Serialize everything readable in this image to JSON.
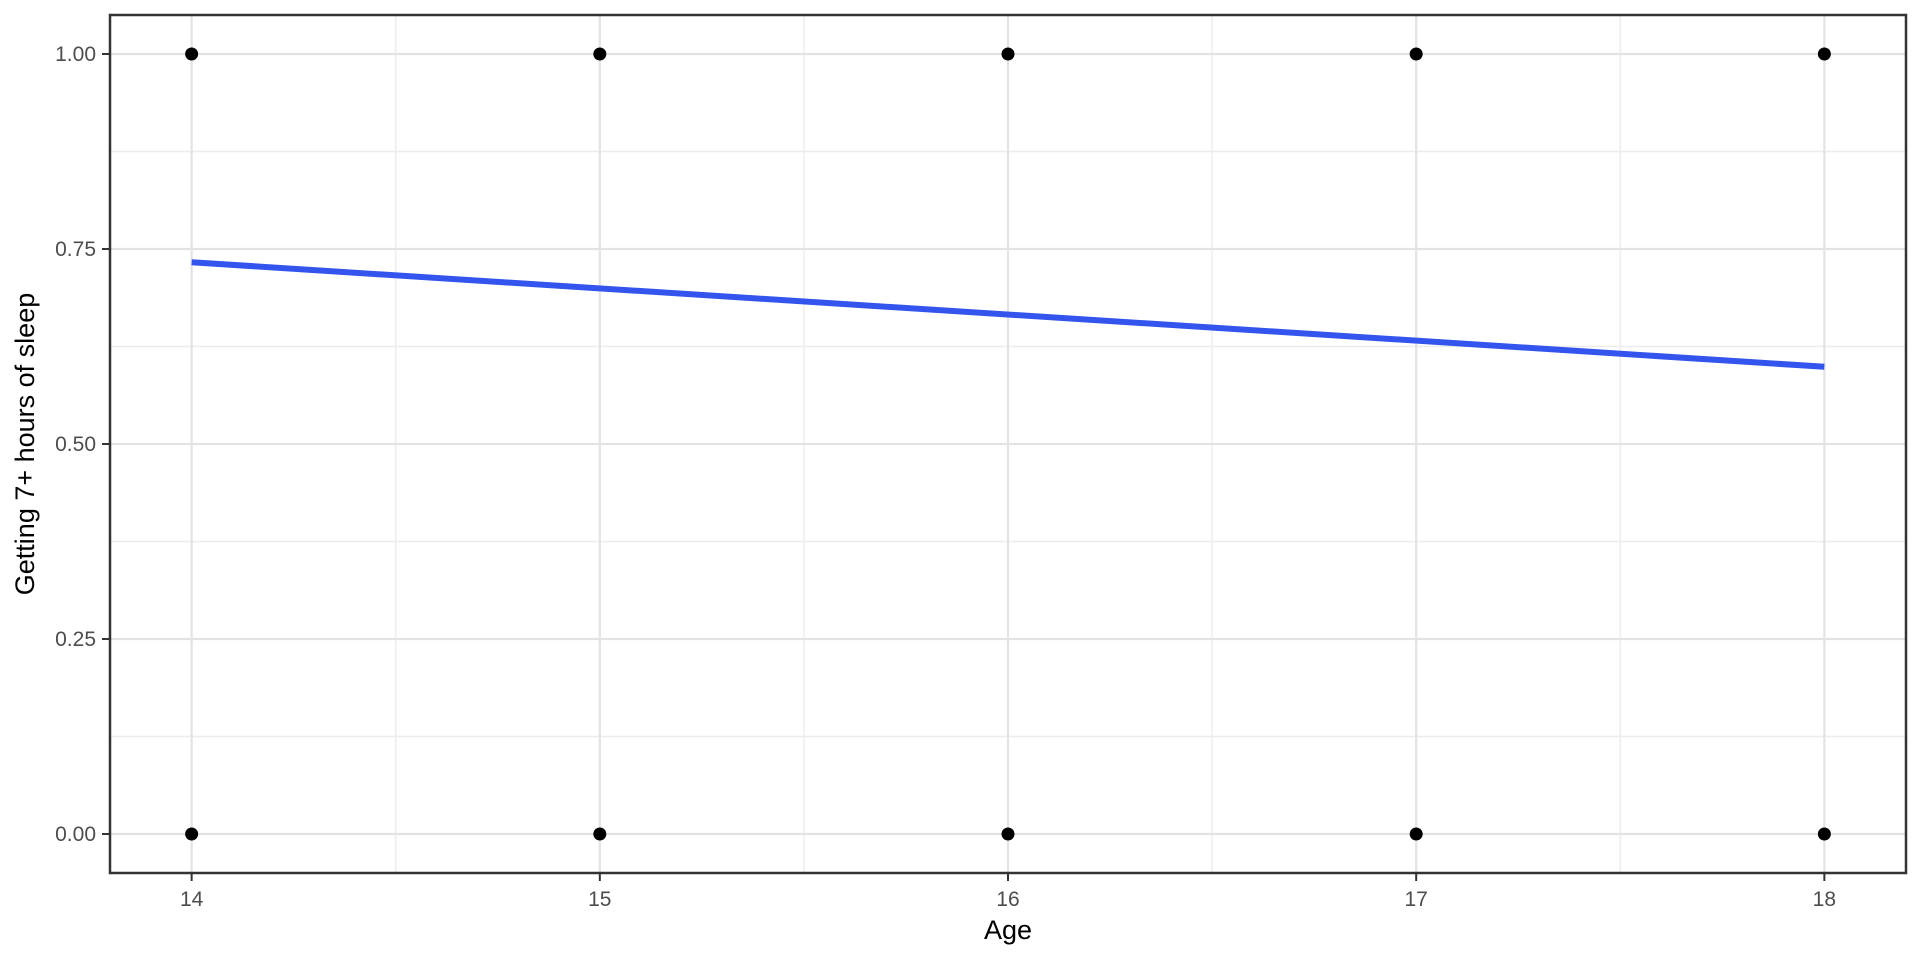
{
  "figure": {
    "background": "#FFFFFF"
  },
  "chart_data": {
    "type": "scatter",
    "title": "",
    "xlabel": "Age",
    "ylabel": "Getting 7+ hours of sleep",
    "x_ticks": [
      "14",
      "15",
      "16",
      "17",
      "18"
    ],
    "x_tick_values": [
      14,
      15,
      16,
      17,
      18
    ],
    "y_ticks": [
      "0.00",
      "0.25",
      "0.50",
      "0.75",
      "1.00"
    ],
    "y_tick_values": [
      0,
      0.25,
      0.5,
      0.75,
      1
    ],
    "xlim": [
      13.8,
      18.2
    ],
    "ylim": [
      -0.05,
      1.05
    ],
    "grid": {
      "major": true,
      "minor": true,
      "major_color": "#E3E3E3",
      "minor_color": "#ECECEC"
    },
    "points": {
      "color": "#000000",
      "x": [
        14,
        15,
        16,
        17,
        18,
        14,
        15,
        16,
        17,
        18
      ],
      "y": [
        0,
        0,
        0,
        0,
        0,
        1,
        1,
        1,
        1,
        1
      ]
    },
    "series": [
      {
        "name": "linear-fit",
        "type": "line",
        "color": "#3355EE",
        "x": [
          14,
          18
        ],
        "y": [
          0.733,
          0.599
        ]
      }
    ],
    "style": {
      "panel_border_color": "#333333",
      "tick_color": "#333333",
      "tick_label_color": "#4D4D4D",
      "axis_title_color": "#000000"
    }
  }
}
